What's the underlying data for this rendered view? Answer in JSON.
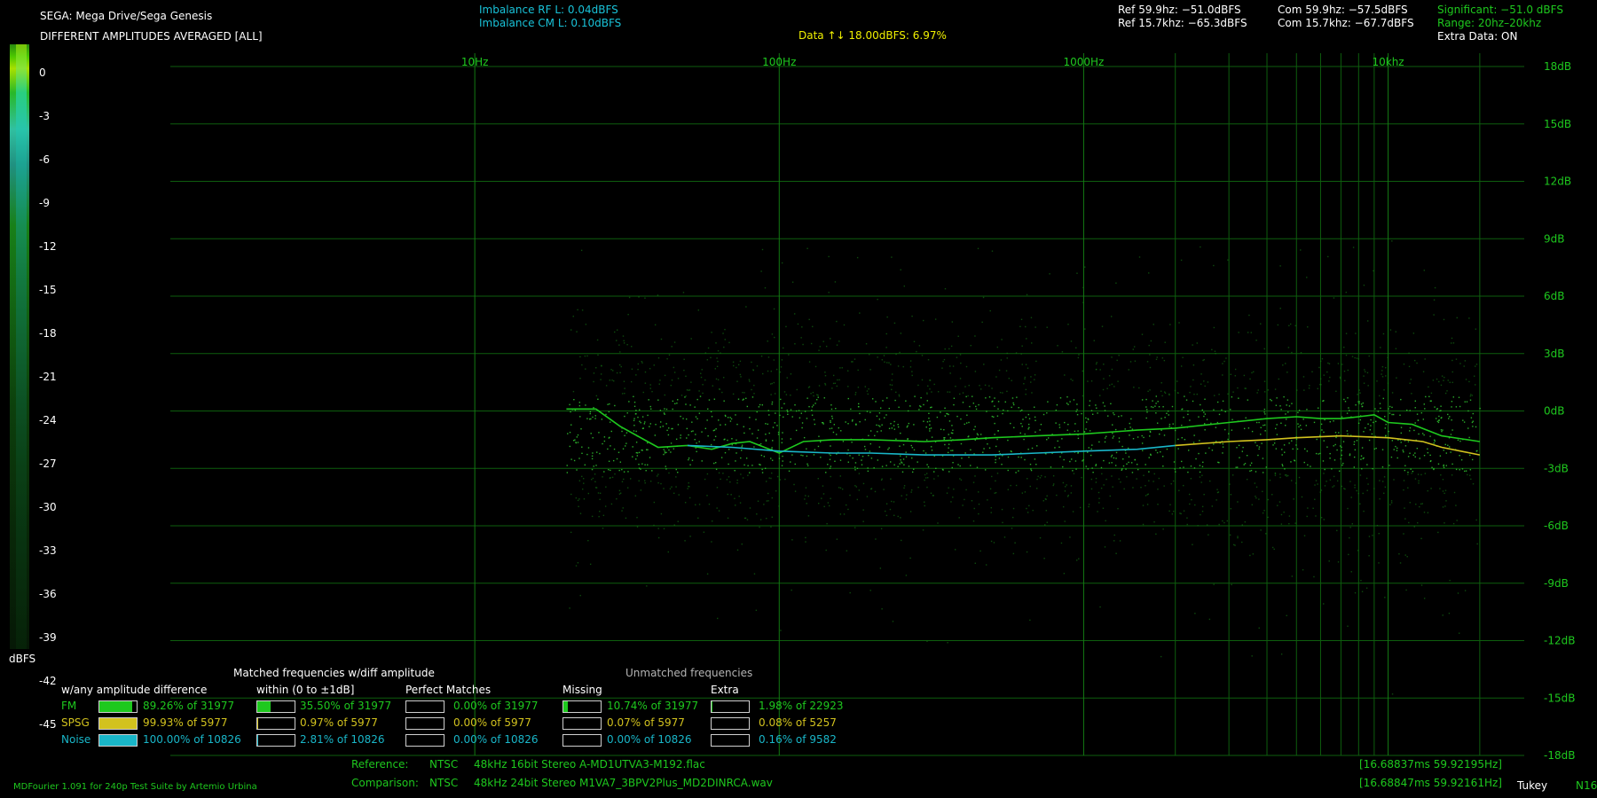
{
  "header": {
    "system": "SEGA: Mega Drive/Sega Genesis",
    "mode": "DIFFERENT AMPLITUDES AVERAGED [ALL]",
    "imbalance_rf": "Imbalance RF L: 0.04dBFS",
    "imbalance_cm": "Imbalance CM L: 0.10dBFS",
    "data_range": "Data ↑↓ 18.00dBFS: 6.97%",
    "ref_60": "Ref 59.9hz:  −51.0dBFS",
    "ref_15k": "Ref 15.7khz: −65.3dBFS",
    "com_60": "Com 59.9hz: −57.5dBFS",
    "com_15k": "Com 15.7khz: −67.7dBFS",
    "significant": "Significant: −51.0 dBFS",
    "range": "Range: 20hz–20khz",
    "extra_data": "Extra Data: ON"
  },
  "colors": {
    "grid": "#0e5e0e",
    "fm": "#1ec81e",
    "spsg": "#d2c21e",
    "noise": "#19b6c8",
    "axis_text": "#1ec81e"
  },
  "scale": {
    "labels": [
      "0",
      "-3",
      "-6",
      "-9",
      "-12",
      "-15",
      "-18",
      "-21",
      "-24",
      "-27",
      "-30",
      "-33",
      "-36",
      "-39",
      "-42",
      "-45"
    ],
    "unit": "dBFS"
  },
  "stats": {
    "title_matched": "Matched frequencies w/diff amplitude",
    "title_unmatched": "Unmatched frequencies",
    "col_any": "w/any amplitude difference",
    "col_within": "within (0 to ±1dB]",
    "col_perfect": "Perfect Matches",
    "col_missing": "Missing",
    "col_extra": "Extra",
    "rows": [
      {
        "name": "FM",
        "any": "89.26% of 31977",
        "any_pct": 89.26,
        "within": "35.50% of 31977",
        "within_pct": 35.5,
        "perfect": "0.00% of 31977",
        "perfect_pct": 0,
        "missing": "10.74% of 31977",
        "missing_pct": 10.74,
        "extra": "1.98% of 22923",
        "extra_pct": 1.98
      },
      {
        "name": "SPSG",
        "any": "99.93% of 5977",
        "any_pct": 99.93,
        "within": "0.97% of 5977",
        "within_pct": 0.97,
        "perfect": "0.00% of 5977",
        "perfect_pct": 0,
        "missing": "0.07% of 5977",
        "missing_pct": 0.07,
        "extra": "0.08% of 5257",
        "extra_pct": 0.08
      },
      {
        "name": "Noise",
        "any": "100.00% of 10826",
        "any_pct": 100,
        "within": "2.81% of 10826",
        "within_pct": 2.81,
        "perfect": "0.00% of 10826",
        "perfect_pct": 0,
        "missing": "0.00% of 10826",
        "missing_pct": 0,
        "extra": "0.16% of 9582",
        "extra_pct": 0.16
      }
    ]
  },
  "footer": {
    "ref_label": "Reference:",
    "ref_format": "NTSC",
    "ref_file": "48kHz 16bit Stereo A-MD1UTVA3-M192.flac",
    "ref_timing": "[16.68837ms 59.92195Hz]",
    "com_label": "Comparison:",
    "com_format": "NTSC",
    "com_file": "48kHz 24bit Stereo M1VA7_3BPV2Plus_MD2DINRCA.wav",
    "com_timing": "[16.68847ms 59.92161Hz]",
    "credit": "MDFourier 1.091 for 240p Test Suite by Artemio Urbina",
    "window": "Tukey",
    "extra": "N16"
  },
  "chart_data": {
    "type": "line",
    "title": "",
    "xlabel": "",
    "ylabel": "",
    "x_scale": "log",
    "xlim": [
      1,
      28000
    ],
    "ylim": [
      -18,
      18
    ],
    "x_ticks": [
      {
        "value": 10,
        "label": "10Hz"
      },
      {
        "value": 100,
        "label": "100Hz"
      },
      {
        "value": 1000,
        "label": "1000Hz"
      },
      {
        "value": 10000,
        "label": "10khz"
      }
    ],
    "y_ticks": [
      {
        "value": 18,
        "label": "18dB"
      },
      {
        "value": 15,
        "label": "15dB"
      },
      {
        "value": 12,
        "label": "12dB"
      },
      {
        "value": 9,
        "label": "9dB"
      },
      {
        "value": 6,
        "label": "6dB"
      },
      {
        "value": 3,
        "label": "3dB"
      },
      {
        "value": 0,
        "label": "0dB"
      },
      {
        "value": -3,
        "label": "-3dB"
      },
      {
        "value": -6,
        "label": "-6dB"
      },
      {
        "value": -9,
        "label": "-9dB"
      },
      {
        "value": -12,
        "label": "-12dB"
      },
      {
        "value": -15,
        "label": "-15dB"
      },
      {
        "value": -18,
        "label": "-18dB"
      }
    ],
    "grid": true,
    "series": [
      {
        "name": "FM",
        "x": [
          20,
          25,
          30,
          40,
          50,
          60,
          70,
          80,
          100,
          120,
          150,
          200,
          300,
          400,
          500,
          700,
          1000,
          1500,
          2000,
          3000,
          4000,
          5000,
          6000,
          7000,
          8000,
          9000,
          10000,
          12000,
          15000,
          20000
        ],
        "y": [
          0.1,
          0.1,
          -0.8,
          -1.9,
          -1.8,
          -2.0,
          -1.7,
          -1.6,
          -2.2,
          -1.6,
          -1.5,
          -1.5,
          -1.6,
          -1.5,
          -1.4,
          -1.3,
          -1.2,
          -1.0,
          -0.9,
          -0.6,
          -0.4,
          -0.3,
          -0.4,
          -0.4,
          -0.3,
          -0.2,
          -0.6,
          -0.7,
          -1.3,
          -1.6
        ]
      },
      {
        "name": "Noise",
        "x": [
          50,
          70,
          100,
          150,
          200,
          300,
          500,
          700,
          1000,
          1500,
          2000
        ],
        "y": [
          -1.8,
          -1.9,
          -2.1,
          -2.2,
          -2.2,
          -2.3,
          -2.3,
          -2.2,
          -2.1,
          -2.0,
          -1.8
        ]
      },
      {
        "name": "SPSG",
        "x": [
          2000,
          3000,
          4000,
          5000,
          7000,
          10000,
          13000,
          15000,
          20000
        ],
        "y": [
          -1.8,
          -1.6,
          -1.5,
          -1.4,
          -1.3,
          -1.4,
          -1.6,
          -1.9,
          -2.3
        ]
      }
    ]
  }
}
